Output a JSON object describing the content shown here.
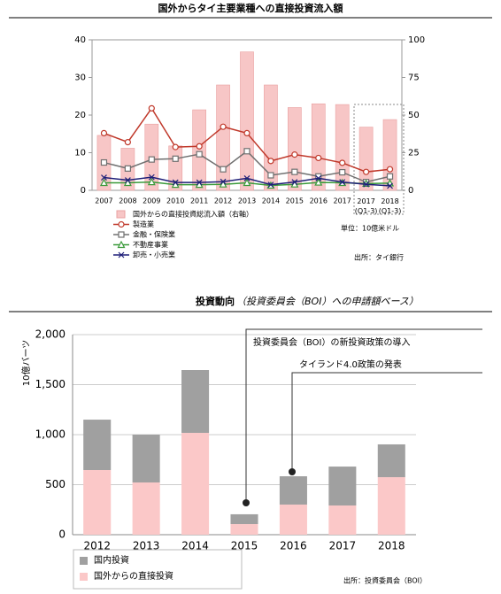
{
  "chart_data": [
    {
      "type": "bar_line",
      "title": "国外からタイ主要業種への直接投資流入額",
      "categories": [
        "2007",
        "2008",
        "2009",
        "2010",
        "2011",
        "2012",
        "2013",
        "2014",
        "2015",
        "2016",
        "2017",
        "2017\n(Q1-3)",
        "2018\n(Q1-3)"
      ],
      "ylim": [
        0,
        40
      ],
      "yticks": [
        0,
        10,
        20,
        30,
        40
      ],
      "y2lim": [
        0,
        100
      ],
      "y2ticks": [
        0,
        25,
        50,
        75,
        100
      ],
      "series": [
        {
          "name": "国外からの直接投資総流入額（右軸）",
          "color": "#f7c6c6",
          "axis": "y2",
          "kind": "bar",
          "values": [
            36.5,
            28,
            44,
            29.5,
            53.5,
            70,
            92,
            70,
            55,
            57.5,
            57,
            42,
            47
          ]
        },
        {
          "name": "製造業",
          "color": "#c0392b",
          "marker": "circle",
          "values": [
            15.2,
            12.8,
            21.8,
            11.5,
            11.7,
            16.9,
            15.2,
            7.8,
            9.5,
            8.6,
            7.3,
            4.9,
            5.6
          ]
        },
        {
          "name": "金融・保険業",
          "color": "#707070",
          "marker": "square",
          "values": [
            7.4,
            5.8,
            8.2,
            8.4,
            9.6,
            5.6,
            10.4,
            4.0,
            4.9,
            3.7,
            4.8,
            2.2,
            3.7
          ]
        },
        {
          "name": "不動産事業",
          "color": "#3a9a3a",
          "marker": "triangle",
          "values": [
            2.0,
            2.0,
            2.2,
            1.5,
            1.5,
            1.6,
            2.0,
            1.3,
            1.6,
            2.1,
            2.0,
            1.8,
            1.9
          ]
        },
        {
          "name": "卸売・小売業",
          "color": "#1f1f78",
          "marker": "x",
          "values": [
            3.4,
            2.7,
            3.5,
            2.1,
            2.1,
            2.3,
            3.2,
            1.5,
            2.2,
            3.2,
            2.2,
            1.6,
            1.2
          ]
        }
      ],
      "unit_note": "単位：10億米ドル",
      "source": "出所：タイ銀行"
    },
    {
      "type": "stacked_bar",
      "title": "投資動向",
      "subtitle": "（投資委員会（BOI）への申請額ベース）",
      "y_label": "10億バーツ",
      "categories": [
        "2012",
        "2013",
        "2014",
        "2015",
        "2016",
        "2017",
        "2018"
      ],
      "ylim": [
        0,
        2000
      ],
      "yticks": [
        0,
        500,
        {
          "value": 1000,
          "label": "1,000"
        },
        {
          "value": 1500,
          "label": "1,500"
        },
        {
          "value": 2000,
          "label": "2,000"
        }
      ],
      "grid": true,
      "series": [
        {
          "name": "国外からの直接投資",
          "color": "#fbc8c8",
          "values": [
            646,
            522,
            1018,
            106,
            301,
            292,
            575
          ]
        },
        {
          "name": "国内投資",
          "color": "#a0a0a0",
          "values": [
            504,
            478,
            628,
            98,
            283,
            389,
            328
          ]
        }
      ],
      "annotations": [
        "投資委員会（BOI）の新投資政策の導入",
        "タイランド4.0政策の発表"
      ],
      "source": "出所：投資委員会（BOI）"
    }
  ]
}
